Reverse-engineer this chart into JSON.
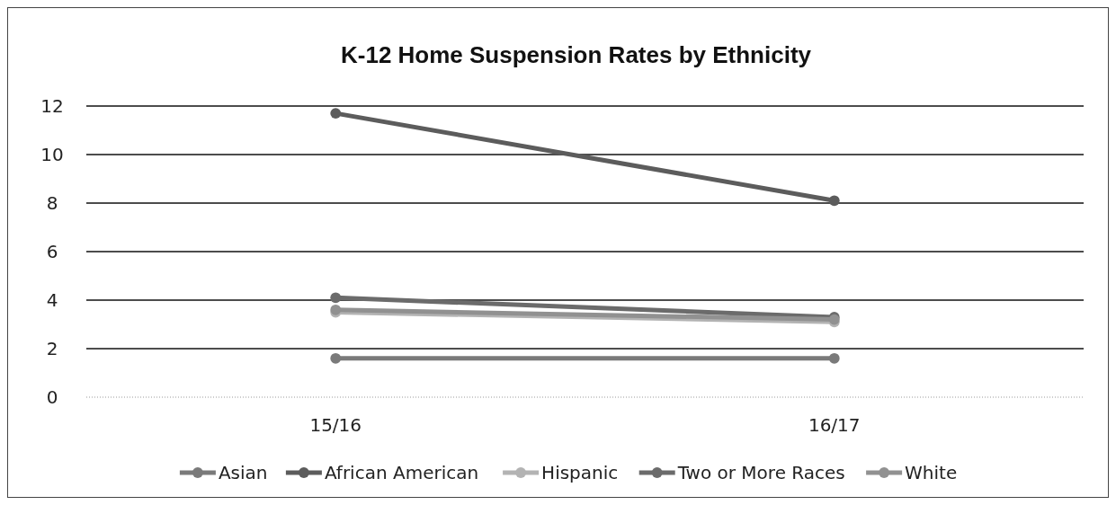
{
  "chart_data": {
    "type": "line",
    "title": "K-12 Home Suspension Rates by Ethnicity",
    "categories": [
      "15/16",
      "16/17"
    ],
    "series": [
      {
        "name": "Asian",
        "color": "#7a7a7a",
        "values": [
          1.6,
          1.6
        ]
      },
      {
        "name": "African American",
        "color": "#5c5c5c",
        "values": [
          11.7,
          8.1
        ]
      },
      {
        "name": "Hispanic",
        "color": "#b3b3b3",
        "values": [
          3.5,
          3.1
        ]
      },
      {
        "name": "Two or More Races",
        "color": "#6b6b6b",
        "values": [
          4.1,
          3.3
        ]
      },
      {
        "name": "White",
        "color": "#919191",
        "values": [
          3.6,
          3.2
        ]
      }
    ],
    "ylim": [
      0,
      12
    ],
    "yticks": [
      0,
      2,
      4,
      6,
      8,
      10,
      12
    ],
    "grid": "y",
    "legend": "bottom",
    "marker": "circle",
    "line_style": "solid"
  }
}
